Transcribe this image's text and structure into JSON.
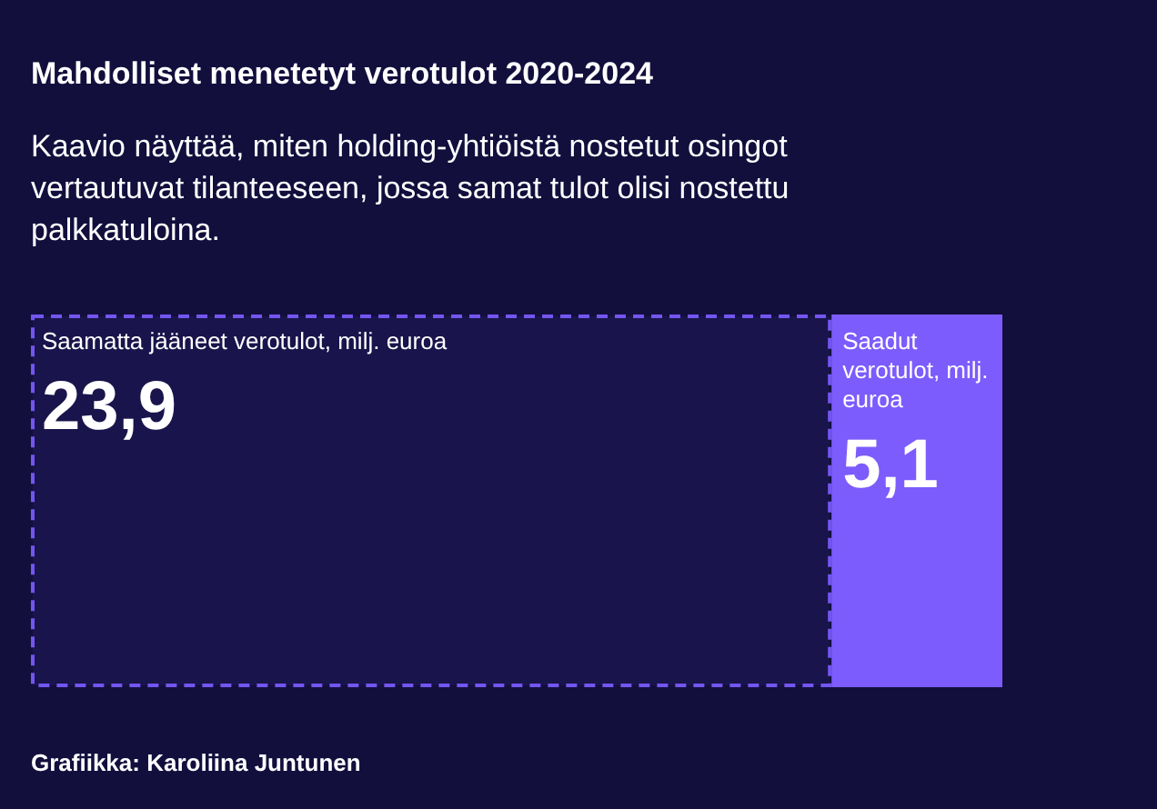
{
  "chart_data": {
    "type": "bar",
    "orientation": "horizontal",
    "stacked": true,
    "title": "Mahdolliset menetetyt verotulot 2020-2024",
    "subtitle": "Kaavio näyttää, miten holding-yhtiöistä nostetut osingot vertautuvat tilanteeseen, jossa samat tulot olisi nostettu palkkatuloina.",
    "annotations": [
      "Grafiikka: Karoliina Juntunen"
    ],
    "categories": [
      null
    ],
    "series": [
      {
        "name": "Saamatta jääneet verotulot, milj. euroa",
        "color": "#7356f0",
        "values": [
          23.9
        ],
        "value_labels": [
          "23,9"
        ],
        "line_style": "dashed"
      },
      {
        "name": "Saadut verotulot, milj. euroa",
        "color": "#7c5cfc",
        "values": [
          5.1
        ],
        "value_labels": [
          "5,1"
        ],
        "line_style": "solid"
      }
    ]
  }
}
